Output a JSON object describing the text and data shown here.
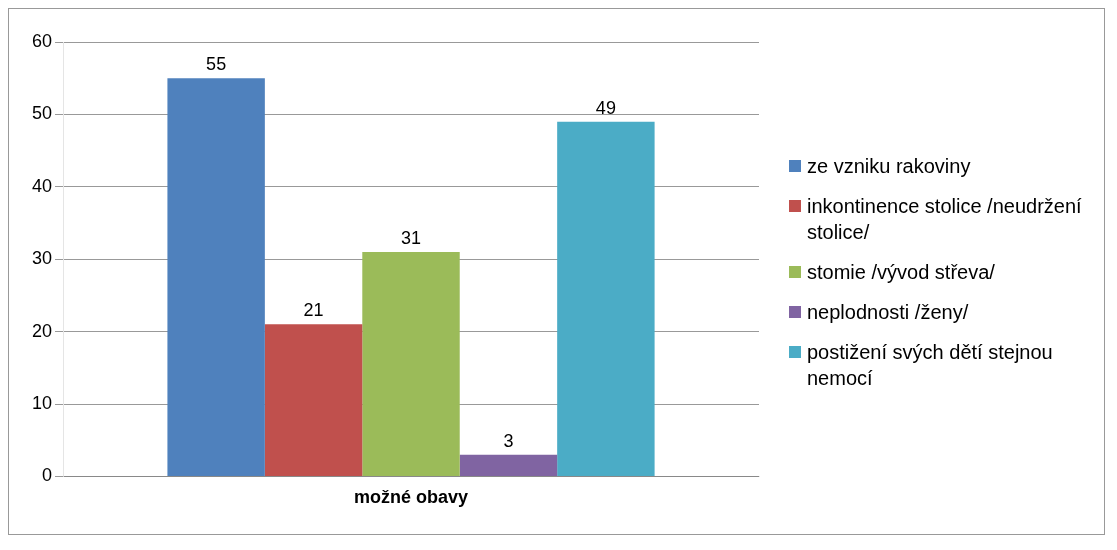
{
  "chart_data": {
    "type": "bar",
    "categories": [
      "možné obavy"
    ],
    "series": [
      {
        "name": "ze vzniku rakoviny",
        "color": "#4f81bd",
        "values": [
          55
        ]
      },
      {
        "name": "inkontinence stolice /neudržení stolice/",
        "color": "#c0504d",
        "values": [
          21
        ]
      },
      {
        "name": "stomie /vývod střeva/",
        "color": "#9bbb59",
        "values": [
          31
        ]
      },
      {
        "name": "neplodnosti /ženy/",
        "color": "#8064a2",
        "values": [
          3
        ]
      },
      {
        "name": "postižení svých dětí stejnou nemocí",
        "color": "#4bacc6",
        "values": [
          49
        ]
      }
    ],
    "ylim": [
      0,
      60
    ],
    "yticks": [
      0,
      10,
      20,
      30,
      40,
      50,
      60
    ],
    "grid": "y",
    "legend": "right",
    "data_labels": true
  }
}
